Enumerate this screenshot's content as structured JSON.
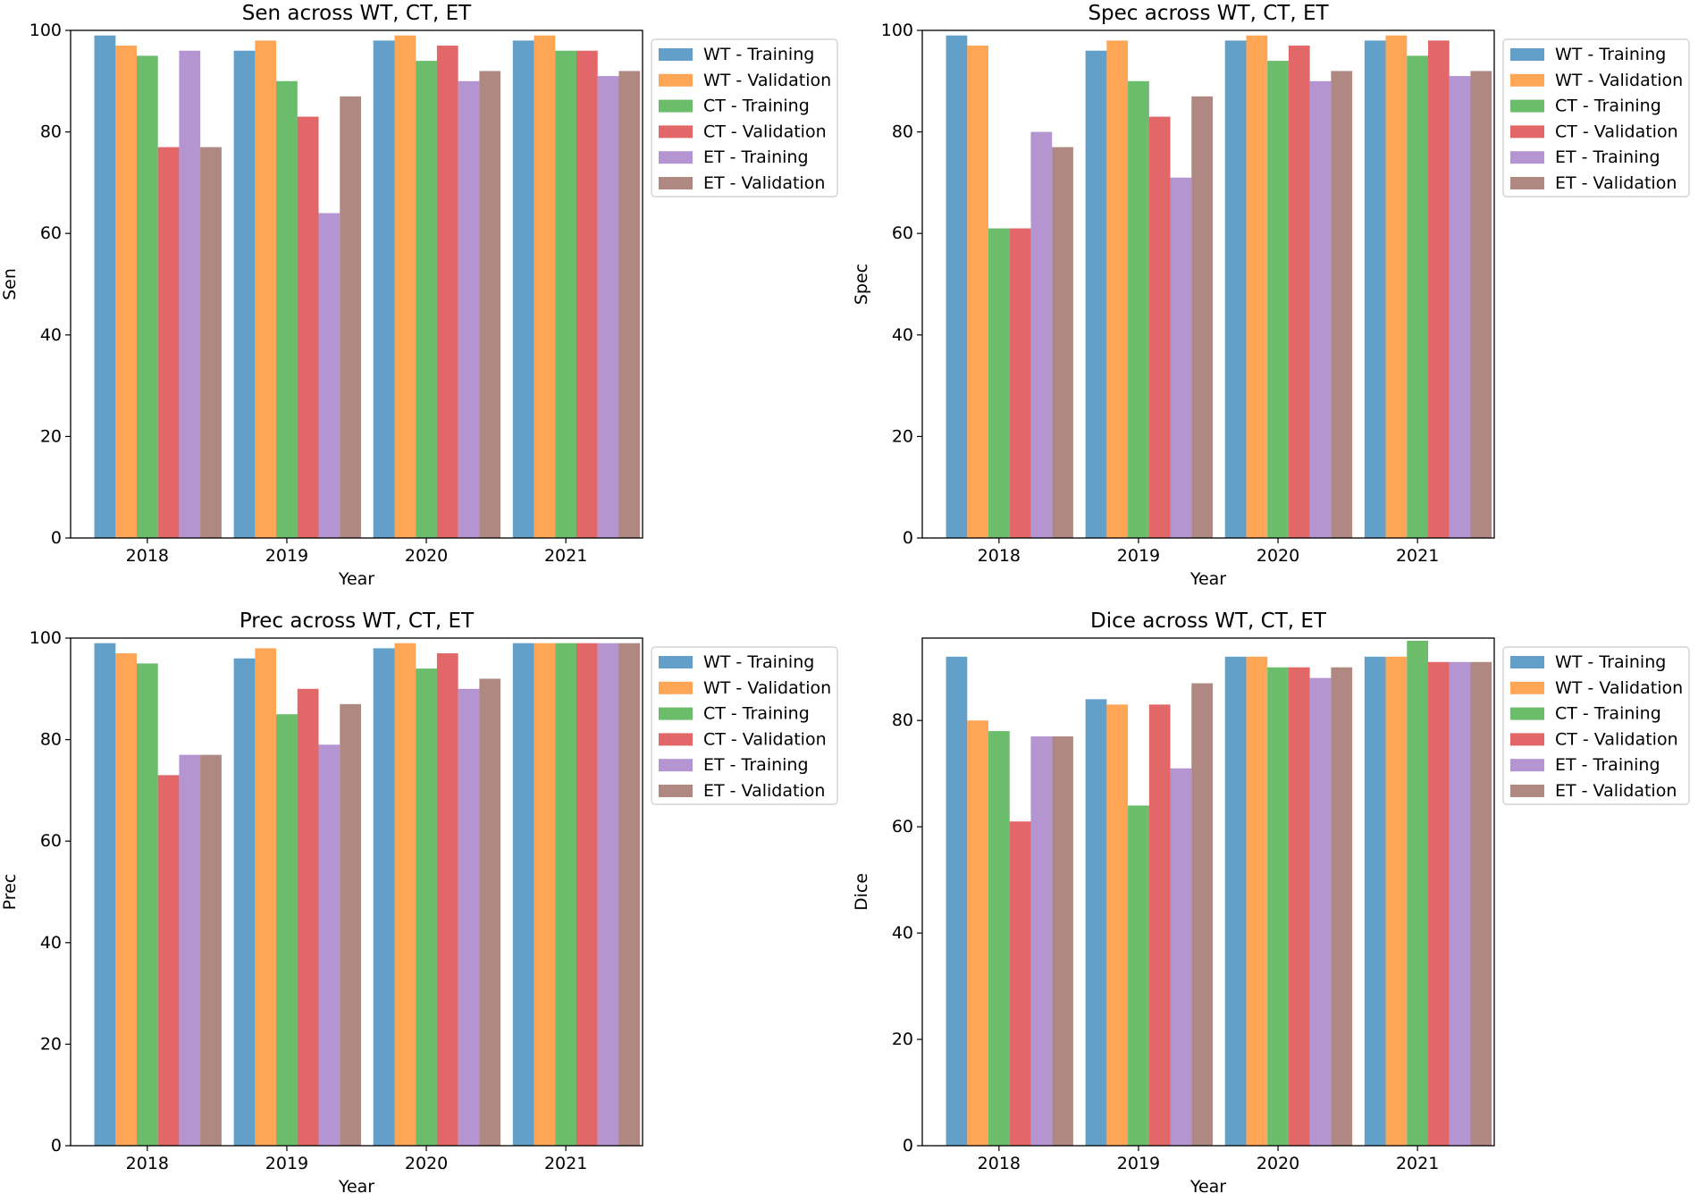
{
  "colors": {
    "wt_training": "#1f77b4",
    "wt_validation": "#ff7f0e",
    "ct_training": "#2ca02c",
    "ct_validation": "#d62728",
    "et_training": "#9467bd",
    "et_validation": "#8c564b",
    "bar_alpha": 0.7
  },
  "chart_data": [
    {
      "type": "bar",
      "title": "Sen across WT, CT, ET",
      "xlabel": "Year",
      "ylabel": "Sen",
      "ylim": [
        0,
        100
      ],
      "yticks": [
        0,
        20,
        40,
        60,
        80,
        100
      ],
      "categories": [
        "2018",
        "2019",
        "2020",
        "2021"
      ],
      "legend_position": "upper-right-outside",
      "series": [
        {
          "name": "WT - Training",
          "values": [
            99,
            96,
            98,
            98
          ]
        },
        {
          "name": "WT - Validation",
          "values": [
            97,
            98,
            99,
            99
          ]
        },
        {
          "name": "CT - Training",
          "values": [
            95,
            90,
            94,
            96
          ]
        },
        {
          "name": "CT - Validation",
          "values": [
            77,
            83,
            97,
            96
          ]
        },
        {
          "name": "ET - Training",
          "values": [
            96,
            64,
            90,
            91
          ]
        },
        {
          "name": "ET - Validation",
          "values": [
            77,
            87,
            92,
            92
          ]
        }
      ]
    },
    {
      "type": "bar",
      "title": "Spec across WT, CT, ET",
      "xlabel": "Year",
      "ylabel": "Spec",
      "ylim": [
        0,
        100
      ],
      "yticks": [
        0,
        20,
        40,
        60,
        80,
        100
      ],
      "categories": [
        "2018",
        "2019",
        "2020",
        "2021"
      ],
      "legend_position": "upper-right-outside",
      "series": [
        {
          "name": "WT - Training",
          "values": [
            99,
            96,
            98,
            98
          ]
        },
        {
          "name": "WT - Validation",
          "values": [
            97,
            98,
            99,
            99
          ]
        },
        {
          "name": "CT - Training",
          "values": [
            61,
            90,
            94,
            95
          ]
        },
        {
          "name": "CT - Validation",
          "values": [
            61,
            83,
            97,
            98
          ]
        },
        {
          "name": "ET - Training",
          "values": [
            80,
            71,
            90,
            91
          ]
        },
        {
          "name": "ET - Validation",
          "values": [
            77,
            87,
            92,
            92
          ]
        }
      ]
    },
    {
      "type": "bar",
      "title": "Prec across WT, CT, ET",
      "xlabel": "Year",
      "ylabel": "Prec",
      "ylim": [
        0,
        100
      ],
      "yticks": [
        0,
        20,
        40,
        60,
        80,
        100
      ],
      "categories": [
        "2018",
        "2019",
        "2020",
        "2021"
      ],
      "legend_position": "upper-right-outside",
      "series": [
        {
          "name": "WT - Training",
          "values": [
            99,
            96,
            98,
            99
          ]
        },
        {
          "name": "WT - Validation",
          "values": [
            97,
            98,
            99,
            99
          ]
        },
        {
          "name": "CT - Training",
          "values": [
            95,
            85,
            94,
            99
          ]
        },
        {
          "name": "CT - Validation",
          "values": [
            73,
            90,
            97,
            99
          ]
        },
        {
          "name": "ET - Training",
          "values": [
            77,
            79,
            90,
            99
          ]
        },
        {
          "name": "ET - Validation",
          "values": [
            77,
            87,
            92,
            99
          ]
        }
      ]
    },
    {
      "type": "bar",
      "title": "Dice across WT, CT, ET",
      "xlabel": "Year",
      "ylabel": "Dice",
      "ylim": [
        0,
        95.5
      ],
      "yticks": [
        0,
        20,
        40,
        60,
        80
      ],
      "categories": [
        "2018",
        "2019",
        "2020",
        "2021"
      ],
      "legend_position": "upper-right-outside",
      "series": [
        {
          "name": "WT - Training",
          "values": [
            92,
            84,
            92,
            92
          ]
        },
        {
          "name": "WT - Validation",
          "values": [
            80,
            83,
            92,
            92
          ]
        },
        {
          "name": "CT - Training",
          "values": [
            78,
            64,
            90,
            95
          ]
        },
        {
          "name": "CT - Validation",
          "values": [
            61,
            83,
            90,
            91
          ]
        },
        {
          "name": "ET - Training",
          "values": [
            77,
            71,
            88,
            91
          ]
        },
        {
          "name": "ET - Validation",
          "values": [
            77,
            87,
            90,
            91
          ]
        }
      ]
    }
  ]
}
